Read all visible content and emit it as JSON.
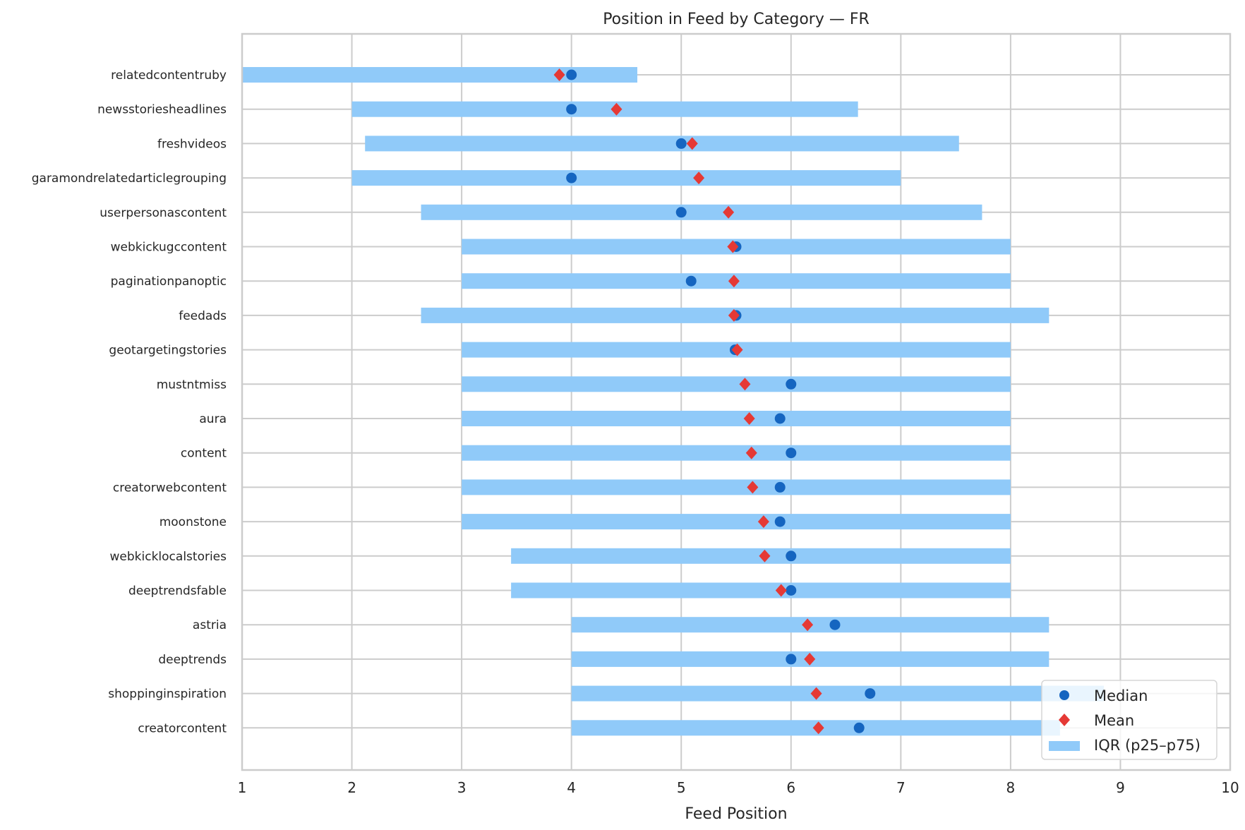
{
  "chart_data": {
    "type": "dot-range",
    "title": "Position in Feed by Category — FR",
    "xlabel": "Feed Position",
    "ylabel": "",
    "xlim": [
      1,
      10
    ],
    "xticks": [
      1,
      2,
      3,
      4,
      5,
      6,
      7,
      8,
      9,
      10
    ],
    "grid": true,
    "legend": {
      "placement": "bottom-right",
      "entries": [
        "Median",
        "Mean",
        "IQR (p25–p75)"
      ]
    },
    "colors": {
      "median": "#1565c0",
      "mean": "#e53935",
      "iqr": "#90caf9"
    },
    "categories": [
      "relatedcontentruby",
      "newsstoriesheadlines",
      "freshvideos",
      "garamondrelatedarticlegrouping",
      "userpersonascontent",
      "webkickugccontent",
      "paginationpanoptic",
      "feedads",
      "geotargetingstories",
      "mustntmiss",
      "aura",
      "content",
      "creatorwebcontent",
      "moonstone",
      "webkicklocalstories",
      "deeptrendsfable",
      "astria",
      "deeptrends",
      "shoppinginspiration",
      "creatorcontent"
    ],
    "series": [
      {
        "name": "IQR (p25–p75)",
        "p25": [
          1,
          2,
          2.12,
          2,
          2.63,
          3,
          3,
          2.63,
          3,
          3,
          3,
          3,
          3,
          3,
          3.45,
          3.45,
          4,
          4,
          4,
          4
        ],
        "p75": [
          4.6,
          6.61,
          7.53,
          7.0,
          7.74,
          8,
          8,
          8.35,
          8,
          8,
          8,
          8,
          8,
          8,
          8,
          8,
          8.35,
          8.35,
          8.85,
          8.45
        ]
      },
      {
        "name": "Median",
        "values": [
          4,
          4,
          5,
          4,
          5,
          5.5,
          5.09,
          5.5,
          5.49,
          6,
          5.9,
          6,
          5.9,
          5.9,
          6,
          6,
          6.4,
          6,
          6.72,
          6.62
        ]
      },
      {
        "name": "Mean",
        "values": [
          3.89,
          4.41,
          5.1,
          5.16,
          5.43,
          5.47,
          5.48,
          5.48,
          5.51,
          5.58,
          5.62,
          5.64,
          5.65,
          5.75,
          5.76,
          5.91,
          6.15,
          6.17,
          6.23,
          6.25
        ]
      }
    ]
  }
}
